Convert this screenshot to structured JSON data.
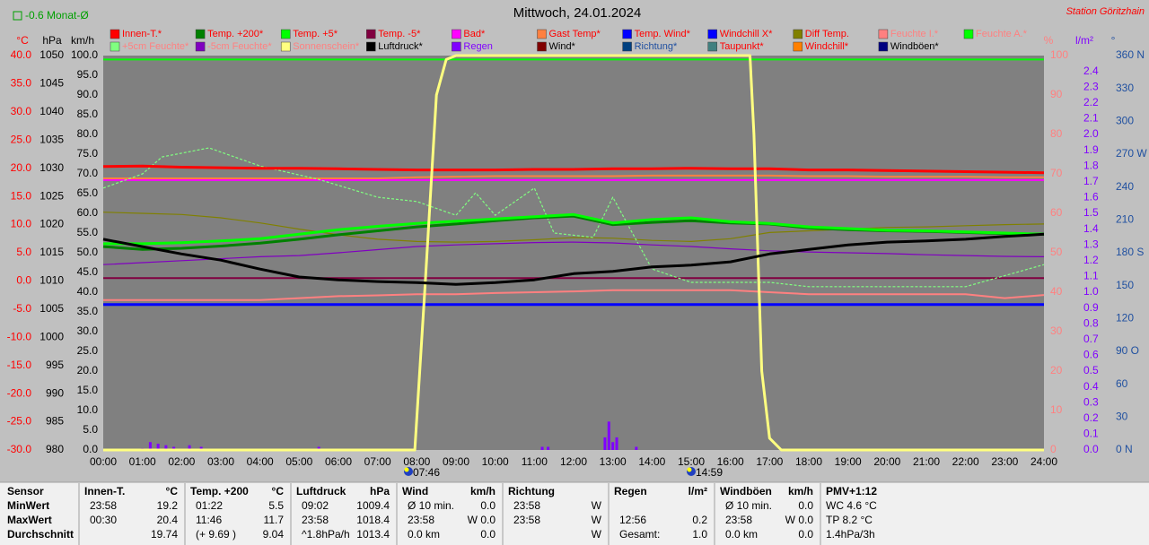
{
  "header": {
    "monthly_average": "-0.6 Monat-Ø",
    "station": "Station Göritzhain"
  },
  "chart_data": {
    "type": "line",
    "title": "Mittwoch, 24.01.2024",
    "annotations": [
      "07:46",
      "14:59"
    ],
    "grid": false,
    "xlim": [
      0,
      24
    ],
    "xticks": [
      {
        "value": 0,
        "label": "00:00"
      },
      {
        "value": 1,
        "label": "01:00"
      },
      {
        "value": 2,
        "label": "02:00"
      },
      {
        "value": 3,
        "label": "03:00"
      },
      {
        "value": 4,
        "label": "04:00"
      },
      {
        "value": 5,
        "label": "05:00"
      },
      {
        "value": 6,
        "label": "06:00"
      },
      {
        "value": 7,
        "label": "07:00"
      },
      {
        "value": 8,
        "label": "08:00"
      },
      {
        "value": 9,
        "label": "09:00"
      },
      {
        "value": 10,
        "label": "10:00"
      },
      {
        "value": 11,
        "label": "11:00"
      },
      {
        "value": 12,
        "label": "12:00"
      },
      {
        "value": 13,
        "label": "13:00"
      },
      {
        "value": 14,
        "label": "14:00"
      },
      {
        "value": 15,
        "label": "15:00"
      },
      {
        "value": 16,
        "label": "16:00"
      },
      {
        "value": 17,
        "label": "17:00"
      },
      {
        "value": 18,
        "label": "18:00"
      },
      {
        "value": 19,
        "label": "19:00"
      },
      {
        "value": 20,
        "label": "20:00"
      },
      {
        "value": 21,
        "label": "21:00"
      },
      {
        "value": 22,
        "label": "22:00"
      },
      {
        "value": 23,
        "label": "23:00"
      },
      {
        "value": 24,
        "label": "24:00"
      }
    ],
    "x": [
      0,
      1,
      2,
      3,
      4,
      5,
      6,
      7,
      8,
      9,
      10,
      11,
      12,
      13,
      14,
      15,
      16,
      17,
      18,
      19,
      20,
      21,
      22,
      23,
      24
    ],
    "ylabel": "°C",
    "ycolor": "#ff0000",
    "ylim": [
      -30,
      40
    ],
    "yticks": [
      {
        "value": -30,
        "label": "-30.0"
      },
      {
        "value": -25,
        "label": "-25.0"
      },
      {
        "value": -20,
        "label": "-20.0"
      },
      {
        "value": -15,
        "label": "-15.0"
      },
      {
        "value": -10,
        "label": "-10.0"
      },
      {
        "value": -5,
        "label": "-5.0"
      },
      {
        "value": 0,
        "label": "0.0"
      },
      {
        "value": 5,
        "label": "5.0"
      },
      {
        "value": 10,
        "label": "10.0"
      },
      {
        "value": 15,
        "label": "15.0"
      },
      {
        "value": 20,
        "label": "20.0"
      },
      {
        "value": 25,
        "label": "25.0"
      },
      {
        "value": 30,
        "label": "30.0"
      },
      {
        "value": 35,
        "label": "35.0"
      },
      {
        "value": 40,
        "label": "40.0"
      }
    ],
    "y3label": "hPa",
    "y3color": "#000000",
    "y3lim": [
      980,
      1050
    ],
    "y3ticks": [
      980,
      985,
      990,
      995,
      1000,
      1005,
      1010,
      1015,
      1020,
      1025,
      1030,
      1035,
      1040,
      1045,
      1050
    ],
    "y4label": "km/h",
    "y4color": "#000000",
    "y4lim": [
      0,
      100
    ],
    "y4ticks": [
      {
        "value": 0,
        "label": "0.0"
      },
      {
        "value": 5,
        "label": "5.0"
      },
      {
        "value": 10,
        "label": "10.0"
      },
      {
        "value": 15,
        "label": "15.0"
      },
      {
        "value": 20,
        "label": "20.0"
      },
      {
        "value": 25,
        "label": "25.0"
      },
      {
        "value": 30,
        "label": "30.0"
      },
      {
        "value": 35,
        "label": "35.0"
      },
      {
        "value": 40,
        "label": "40.0"
      },
      {
        "value": 45,
        "label": "45.0"
      },
      {
        "value": 50,
        "label": "50.0"
      },
      {
        "value": 55,
        "label": "55.0"
      },
      {
        "value": 60,
        "label": "60.0"
      },
      {
        "value": 65,
        "label": "65.0"
      },
      {
        "value": 70,
        "label": "70.0"
      },
      {
        "value": 75,
        "label": "75.0"
      },
      {
        "value": 80,
        "label": "80.0"
      },
      {
        "value": 85,
        "label": "85.0"
      },
      {
        "value": 90,
        "label": "90.0"
      },
      {
        "value": 95,
        "label": "95.0"
      },
      {
        "value": 100,
        "label": "100.0"
      }
    ],
    "y2label": "%",
    "y2color": "#ff8080",
    "y2lim": [
      0,
      100
    ],
    "y2ticks": [
      0,
      10,
      20,
      30,
      40,
      50,
      60,
      70,
      80,
      90,
      100
    ],
    "y5label": "l/m²",
    "y5color": "#8000ff",
    "y5lim": [
      0,
      2.5
    ],
    "y5ticks": [
      {
        "value": 0,
        "label": "0.0"
      },
      0.1,
      0.2,
      0.3,
      0.4,
      0.5,
      0.6,
      0.7,
      0.8,
      0.9,
      {
        "value": 1,
        "label": "1.0"
      },
      1.1,
      1.2,
      1.3,
      1.4,
      1.5,
      1.6,
      1.7,
      1.8,
      1.9,
      {
        "value": 2,
        "label": "2.0"
      },
      2.1,
      2.2,
      2.3,
      2.4
    ],
    "y6label": "°",
    "y6color": "#2050a0",
    "y6lim": [
      0,
      360
    ],
    "y6ticks": [
      {
        "value": 0,
        "label": "0 N"
      },
      30,
      60,
      {
        "value": 90,
        "label": "90 O"
      },
      120,
      150,
      {
        "value": 180,
        "label": "180 S"
      },
      210,
      240,
      {
        "value": 270,
        "label": "270 W"
      },
      300,
      330,
      {
        "value": 360,
        "label": "360 N"
      }
    ],
    "series": [
      {
        "name": "Innen-T.*",
        "color": "#ff0000",
        "axis": "y",
        "style": "thick",
        "values": [
          20.3,
          20.4,
          20.2,
          20.1,
          20.0,
          20.0,
          19.9,
          19.8,
          19.7,
          19.7,
          19.7,
          19.8,
          19.8,
          19.9,
          19.9,
          20.0,
          19.9,
          19.9,
          19.7,
          19.7,
          19.6,
          19.5,
          19.4,
          19.3,
          19.2
        ]
      },
      {
        "name": "Temp. +200*",
        "color": "#008000",
        "axis": "y",
        "style": "thick",
        "values": [
          6.1,
          5.6,
          5.8,
          6.2,
          6.7,
          7.4,
          8.2,
          8.9,
          9.6,
          10.1,
          10.7,
          11.2,
          11.5,
          10.0,
          10.4,
          10.7,
          10.3,
          10.1,
          9.4,
          9.1,
          8.9,
          8.8,
          8.6,
          8.4,
          8.3
        ]
      },
      {
        "name": "Temp. +5*",
        "color": "#00ff00",
        "axis": "y",
        "style": "thick",
        "values": [
          6.6,
          6.6,
          6.8,
          7.1,
          7.5,
          8.3,
          9.1,
          9.7,
          10.2,
          10.6,
          11.0,
          11.4,
          11.8,
          10.3,
          10.9,
          11.2,
          10.5,
          10.2,
          9.6,
          9.3,
          9.0,
          8.9,
          8.7,
          8.5,
          8.3
        ]
      },
      {
        "name": "Temp. -5*",
        "color": "#800040",
        "axis": "y",
        "style": "medium",
        "values": [
          0.5,
          0.5,
          0.5,
          0.5,
          0.5,
          0.5,
          0.5,
          0.5,
          0.5,
          0.5,
          0.5,
          0.5,
          0.5,
          0.5,
          0.5,
          0.5,
          0.5,
          0.5,
          0.5,
          0.5,
          0.5,
          0.5,
          0.5,
          0.5,
          0.5
        ]
      },
      {
        "name": "Bad*",
        "color": "#ff00ff",
        "axis": "y",
        "style": "medium",
        "values": [
          17.9,
          17.9,
          17.9,
          17.9,
          17.9,
          17.9,
          17.9,
          17.9,
          17.9,
          17.9,
          17.9,
          17.9,
          17.9,
          17.9,
          17.9,
          17.9,
          17.9,
          17.9,
          17.9,
          17.9,
          17.9,
          17.9,
          17.9,
          17.9,
          17.9
        ]
      },
      {
        "name": "Gast Temp*",
        "color": "#ff8040",
        "axis": "y",
        "style": "medium",
        "values": [
          18.2,
          18.2,
          18.2,
          18.2,
          18.2,
          18.2,
          18.2,
          18.2,
          18.4,
          18.5,
          18.6,
          18.6,
          18.6,
          18.6,
          18.7,
          18.7,
          18.7,
          18.7,
          18.6,
          18.6,
          18.5,
          18.5,
          18.5,
          18.4,
          18.4
        ]
      },
      {
        "name": "Temp. Wind*",
        "color": "#0000ff",
        "axis": "y",
        "style": "thick",
        "values": [
          -4.2,
          -4.2,
          -4.2,
          -4.2,
          -4.2,
          -4.2,
          -4.2,
          -4.2,
          -4.2,
          -4.2,
          -4.2,
          -4.2,
          -4.2,
          -4.2,
          -4.2,
          -4.2,
          -4.2,
          -4.2,
          -4.2,
          -4.2,
          -4.2,
          -4.2,
          -4.2,
          -4.2,
          -4.2
        ]
      },
      {
        "name": "Windchill X*",
        "color": "#0000ff",
        "axis": "y"
      },
      {
        "name": "Diff Temp.",
        "color": "#808000",
        "axis": "y",
        "style": "thin",
        "values": [
          12.2,
          12.0,
          11.8,
          11.2,
          10.3,
          9.2,
          8.2,
          7.4,
          7.0,
          6.9,
          7.0,
          7.3,
          7.7,
          7.6,
          7.2,
          7.0,
          7.5,
          8.6,
          8.9,
          9.2,
          9.5,
          9.6,
          9.8,
          10.0,
          10.1
        ]
      },
      {
        "name": "Feuchte I.*",
        "color": "#ff8080",
        "axis": "y2",
        "style": "medium",
        "values": [
          38,
          38,
          38,
          38,
          38,
          38.5,
          39,
          39.2,
          39.5,
          39.5,
          39.8,
          40,
          40.2,
          40.5,
          40.5,
          40.5,
          40.5,
          40,
          39.5,
          39.5,
          39.5,
          39.5,
          39.5,
          38.5,
          39.3
        ]
      },
      {
        "name": "Feuchte A.*",
        "color": "#00ff00",
        "axis": "y2",
        "style": "medium",
        "values": [
          99,
          99,
          99,
          99,
          99,
          99,
          99,
          99,
          99,
          99,
          99,
          99,
          99,
          99,
          99,
          99,
          99,
          99,
          99,
          99,
          99,
          99,
          99,
          99,
          99
        ]
      },
      {
        "name": "+5cm Feuchte*",
        "color": "#80ff80",
        "axis": "y2",
        "style": "dashed",
        "x": [
          0,
          1,
          1.5,
          2.7,
          4,
          5.5,
          7,
          8,
          9,
          9.5,
          10,
          11,
          11.5,
          12.5,
          13,
          14,
          15,
          17,
          18,
          22,
          24
        ],
        "values": [
          66.4,
          70,
          74.3,
          76.6,
          72,
          68.6,
          64.1,
          63,
          59.5,
          65.2,
          59.5,
          66.4,
          55,
          53.9,
          64.1,
          45.9,
          42.5,
          42.5,
          41.4,
          41.4,
          47
        ]
      },
      {
        "name": "-5cm Feuchte*",
        "color": "#8000c0",
        "axis": "y2",
        "style": "thin",
        "values": [
          47,
          47.5,
          48,
          48.5,
          49,
          49.3,
          50,
          50.8,
          51.6,
          52,
          52.3,
          52.6,
          52.7,
          52.5,
          52,
          51.6,
          51,
          50.5,
          50.2,
          50,
          49.8,
          49.5,
          49.3,
          49.1,
          49
        ]
      },
      {
        "name": "Sonnenschein*",
        "color": "#ffff80",
        "axis": "y2",
        "style": "thick",
        "x": [
          0,
          7.95,
          8.2,
          8.5,
          8.75,
          9,
          16.5,
          16.6,
          16.8,
          17,
          17.3,
          24
        ],
        "values": [
          0,
          0,
          40,
          90,
          99,
          100,
          100,
          80,
          20,
          3,
          0,
          0
        ]
      },
      {
        "name": "Luftdruck*",
        "color": "#000000",
        "axis": "y3",
        "style": "thick",
        "values": [
          1017.4,
          1016.1,
          1014.8,
          1013.7,
          1012.1,
          1010.7,
          1010.2,
          1009.9,
          1009.7,
          1009.4,
          1009.7,
          1010.2,
          1011.3,
          1011.7,
          1012.5,
          1012.8,
          1013.4,
          1014.8,
          1015.6,
          1016.4,
          1016.9,
          1017.1,
          1017.4,
          1017.9,
          1018.3
        ]
      },
      {
        "name": "Regen",
        "color": "#8000ff",
        "axis": "y5",
        "type": "bar",
        "x": [
          1.0,
          1.2,
          1.4,
          1.6,
          1.8,
          2.2,
          2.5,
          5.5,
          11.2,
          11.35,
          12.8,
          12.9,
          13.0,
          13.1,
          13.6
        ],
        "values": [
          0.01,
          0.05,
          0.04,
          0.03,
          0.02,
          0.03,
          0.02,
          0.02,
          0.02,
          0.02,
          0.08,
          0.18,
          0.05,
          0.08,
          0.02
        ]
      },
      {
        "name": "Wind*",
        "color": "#800000",
        "axis": "y4"
      },
      {
        "name": "Richtung*",
        "color": "#004080",
        "axis": "y6"
      },
      {
        "name": "Taupunkt*",
        "color": "#408080",
        "axis": "y"
      },
      {
        "name": "Windchill*",
        "color": "#ff8000",
        "axis": "y"
      },
      {
        "name": "Windböen*",
        "color": "#000080",
        "axis": "y4"
      }
    ]
  },
  "table": {
    "columns": [
      {
        "header": [
          "Sensor"
        ],
        "cells": [
          [
            "MinWert"
          ],
          [
            "MaxWert"
          ],
          [
            "Durchschnitt"
          ]
        ]
      },
      {
        "header": [
          "Innen-T.",
          "°C"
        ],
        "cells": [
          [
            "23:58",
            "19.2"
          ],
          [
            "00:30",
            "20.4"
          ],
          [
            null,
            "19.74"
          ]
        ]
      },
      {
        "header": [
          "Temp. +200",
          "°C"
        ],
        "cells": [
          [
            "01:22",
            "5.5"
          ],
          [
            "11:46",
            "11.7"
          ],
          [
            "(+ 9.69 )",
            "9.04"
          ]
        ]
      },
      {
        "header": [
          "Luftdruck",
          "hPa"
        ],
        "cells": [
          [
            "09:02",
            "1009.4"
          ],
          [
            "23:58",
            "1018.4"
          ],
          [
            "^1.8hPa/h",
            "1013.4"
          ]
        ]
      },
      {
        "header": [
          "Wind",
          "km/h"
        ],
        "cells": [
          [
            "Ø 10 min.",
            "0.0"
          ],
          [
            "23:58",
            "W 0.0"
          ],
          [
            "0.0 km",
            "0.0"
          ]
        ]
      },
      {
        "header": [
          "Richtung"
        ],
        "cells": [
          [
            "23:58",
            "W"
          ],
          [
            "23:58",
            "W"
          ],
          [
            null,
            "W"
          ]
        ]
      },
      {
        "header": [
          "Regen",
          "l/m²"
        ],
        "cells": [
          [],
          [
            "12:56",
            "0.2"
          ],
          [
            "Gesamt:",
            "1.0"
          ]
        ]
      },
      {
        "header": [
          "Windböen",
          "km/h"
        ],
        "cells": [
          [
            "Ø 10 min.",
            "0.0"
          ],
          [
            "23:58",
            "W 0.0"
          ],
          [
            "0.0 km",
            "0.0"
          ]
        ]
      },
      {
        "header": [
          "PMV+1:12"
        ],
        "cells": [
          [
            "WC 4.6 °C"
          ],
          [
            "TP 8.2 °C"
          ],
          [
            "1.4hPa/3h"
          ]
        ]
      }
    ]
  }
}
